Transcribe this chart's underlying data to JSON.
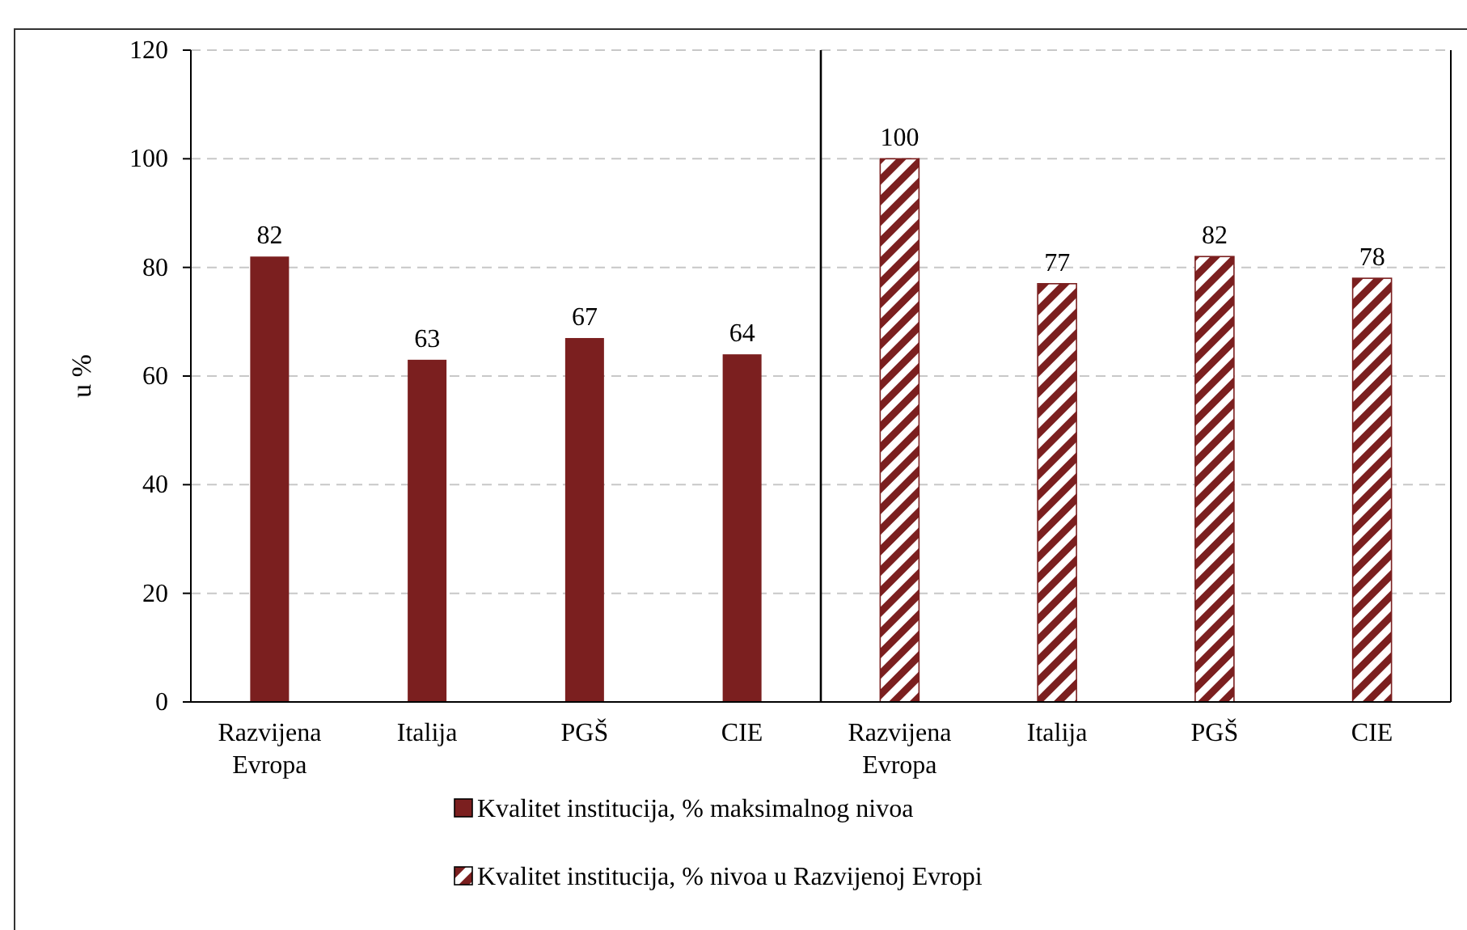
{
  "chart_data": [
    {
      "type": "bar",
      "ylabel": "u %",
      "categories": [
        "Razvijena Evropa",
        "Italija",
        "PGŠ",
        "CIE"
      ],
      "series": [
        {
          "name": "Kvalitet institucija, % maksimalnog nivoa",
          "color": "#7b1f1f",
          "values": [
            82,
            63,
            67,
            64
          ]
        }
      ],
      "ylim": [
        0,
        120
      ],
      "yticks": [
        0,
        20,
        40,
        60,
        80,
        100,
        120
      ],
      "grid": "y",
      "legend": "bottom",
      "data_labels": true
    },
    {
      "type": "bar",
      "categories": [
        "Razvijena Evropa",
        "Italija",
        "PGŠ",
        "CIE"
      ],
      "series": [
        {
          "name": "Kvalitet institucija, % nivoa u Razvijenoj Evropi",
          "color": "#7b1f1f",
          "values": [
            100,
            77,
            82,
            78
          ]
        }
      ],
      "ylim": [
        0,
        120
      ],
      "yticks": [
        0,
        20,
        40,
        60,
        80,
        100,
        120
      ],
      "grid": "y",
      "legend": "bottom",
      "data_labels": true,
      "tick_labels": "x"
    }
  ]
}
